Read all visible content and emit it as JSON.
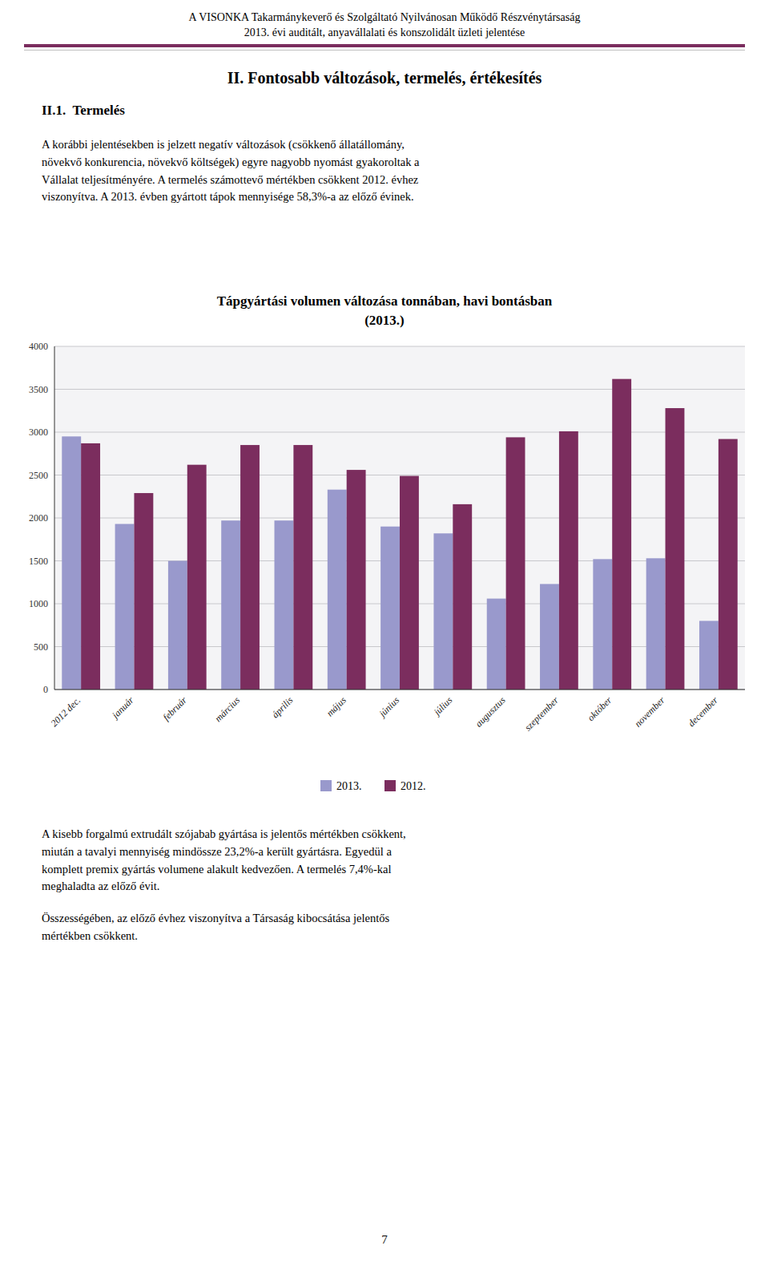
{
  "header": [
    "A VISONKA Takarmánykeverő és Szolgáltató Nyilvánosan Működő Részvénytársaság",
    "2013. évi auditált, anyavállalati és konszolidált üzleti jelentése"
  ],
  "section_title": "II. Fontosabb változások, termelés, értékesítés",
  "subsection_title": "II.1.  Termelés",
  "body_text": [
    "A korábbi jelentésekben is jelzett negatív változások (csökkenő állatállomány,\nnövekvő konkurencia, növekvő költségek) egyre nagyobb nyomást gyakoroltak a\nVállalat teljesítményére. A termelés számottevő mértékben csökkent 2012. évhez\nviszonyítva. A 2013. évben gyártott tápok mennyisége 58,3%-a az előző évinek.",
    "A kisebb forgalmú extrudált szójabab gyártása is jelentős mértékben csökkent,\nmiután a tavalyi mennyiség mindössze 23,2%-a került gyártásra. Egyedül a\nkomplett premix gyártás volumene alakult kedvezően. A termelés 7,4%-kal\nmeghaladta az előző évit.",
    "Összességében, az előző évhez viszonyítva a Társaság kibocsátása jelentős\nmértékben csökkent."
  ],
  "page_number": "7",
  "chart_data": {
    "type": "bar",
    "title": "Tápgyártási volumen változása tonnában, havi bontásban",
    "subtitle": "(2013.)",
    "categories": [
      "2012 dec.",
      "január",
      "február",
      "március",
      "április",
      "május",
      "június",
      "július",
      "augusztus",
      "szeptember",
      "október",
      "november",
      "december"
    ],
    "series": [
      {
        "name": "2013.",
        "color": "#9999cc",
        "values": [
          2950,
          1930,
          1500,
          1970,
          1970,
          2330,
          1900,
          1820,
          1060,
          1230,
          1520,
          1530,
          800
        ]
      },
      {
        "name": "2012.",
        "color": "#7b2d5e",
        "values": [
          2870,
          2290,
          2620,
          2850,
          2850,
          2560,
          2490,
          2160,
          2940,
          3010,
          3620,
          3280,
          2920
        ]
      }
    ],
    "ylim": [
      0,
      4000
    ],
    "yticks": [
      0,
      500,
      1000,
      1500,
      2000,
      2500,
      3000,
      3500,
      4000
    ],
    "grid": true,
    "legend": "bottom"
  }
}
